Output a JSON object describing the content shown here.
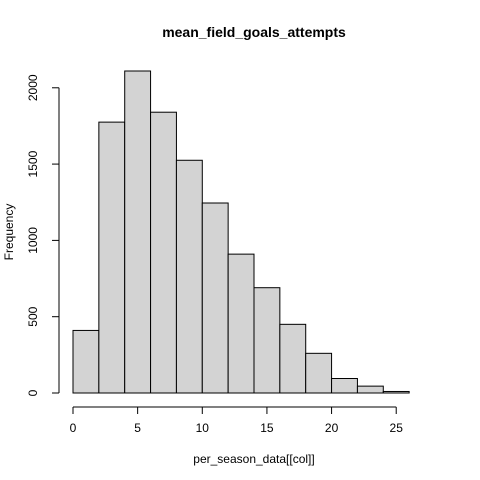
{
  "chart_data": {
    "type": "bar",
    "title": "mean_field_goals_attempts",
    "xlabel": "per_season_data[[col]]",
    "ylabel": "Frequency",
    "bin_edges": [
      0,
      2,
      4,
      6,
      8,
      10,
      12,
      14,
      16,
      18,
      20,
      22,
      24,
      26,
      28
    ],
    "values": [
      410,
      1775,
      2110,
      1840,
      1525,
      1245,
      910,
      690,
      450,
      260,
      95,
      45,
      10,
      0
    ],
    "xlim": [
      0,
      28
    ],
    "ylim": [
      0,
      2110
    ],
    "x_ticks": [
      0,
      5,
      10,
      15,
      20,
      25
    ],
    "y_ticks": [
      0,
      500,
      1000,
      1500,
      2000
    ],
    "colors": {
      "bar_fill": "#d3d3d3",
      "bar_stroke": "#000000"
    }
  }
}
